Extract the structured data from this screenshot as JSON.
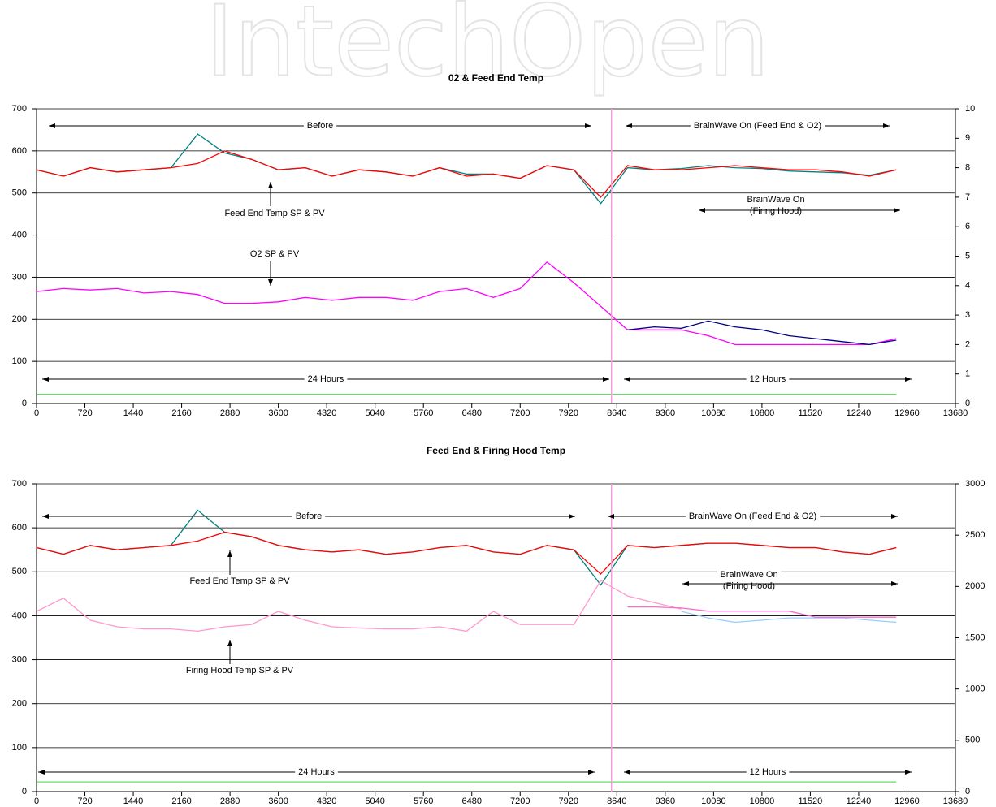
{
  "watermark": "IntechOpen",
  "chart_data": [
    {
      "type": "line",
      "title": "02 & Feed End Temp",
      "x": [
        0,
        400,
        800,
        1200,
        1600,
        2000,
        2400,
        2800,
        3200,
        3600,
        4000,
        4400,
        4800,
        5200,
        5600,
        6000,
        6400,
        6800,
        7200,
        7600,
        8000,
        8400,
        8800,
        9200,
        9600,
        10000,
        10400,
        10800,
        11200,
        11600,
        12000,
        12400,
        12800
      ],
      "xlim": [
        0,
        13680
      ],
      "xticks": [
        0,
        720,
        1440,
        2160,
        2880,
        3600,
        4320,
        5040,
        5760,
        6480,
        7200,
        7920,
        8640,
        9360,
        10080,
        10800,
        11520,
        12240,
        12960,
        13680
      ],
      "ylim": [
        0,
        700
      ],
      "yticks": [
        0,
        100,
        200,
        300,
        400,
        500,
        600,
        700
      ],
      "y2lim": [
        0,
        10
      ],
      "y2ticks": [
        0,
        1,
        2,
        3,
        4,
        5,
        6,
        7,
        8,
        9,
        10
      ],
      "grid": true,
      "vline": 8560,
      "vline_color": "#ff99dd",
      "series": [
        {
          "color": "#008080",
          "values": [
            555,
            540,
            560,
            550,
            555,
            560,
            640,
            595,
            580,
            555,
            560,
            540,
            555,
            550,
            540,
            560,
            545,
            545,
            535,
            565,
            555,
            475,
            560,
            555,
            558,
            565,
            560,
            558,
            552,
            550,
            548,
            542,
            555
          ]
        },
        {
          "color": "#ff0000",
          "values": [
            555,
            540,
            560,
            550,
            555,
            560,
            570,
            600,
            580,
            555,
            560,
            540,
            555,
            550,
            540,
            560,
            540,
            545,
            535,
            565,
            555,
            490,
            565,
            555,
            555,
            560,
            565,
            560,
            555,
            555,
            550,
            540,
            555
          ]
        },
        {
          "color": "#ff00ff",
          "axis": "y2",
          "values": [
            3.8,
            3.9,
            3.85,
            3.9,
            3.75,
            3.8,
            3.7,
            3.4,
            3.4,
            3.45,
            3.6,
            3.5,
            3.6,
            3.6,
            3.5,
            3.8,
            3.9,
            3.6,
            3.9,
            4.8,
            4.1,
            3.3,
            2.5,
            2.5,
            2.5,
            2.3,
            2.0,
            2.0,
            2.0,
            2.0,
            2.0,
            2.0,
            2.2
          ]
        },
        {
          "color": "#000080",
          "axis": "y2",
          "values": [
            null,
            null,
            null,
            null,
            null,
            null,
            null,
            null,
            null,
            null,
            null,
            null,
            null,
            null,
            null,
            null,
            null,
            null,
            null,
            null,
            null,
            null,
            2.5,
            2.6,
            2.55,
            2.8,
            2.6,
            2.5,
            2.3,
            2.2,
            2.1,
            2.0,
            2.15
          ]
        },
        {
          "color": "#66dd66",
          "x": [
            0,
            12800
          ],
          "values": [
            22,
            22
          ]
        }
      ],
      "annotations": [
        "Before",
        "BrainWave On (Feed End & O2)",
        "Feed End Temp SP & PV",
        "BrainWave On",
        "(Firing Hood)",
        "O2 SP & PV",
        "24 Hours",
        "12 Hours"
      ]
    },
    {
      "type": "line",
      "title": "Feed End & Firing Hood Temp",
      "x": [
        0,
        400,
        800,
        1200,
        1600,
        2000,
        2400,
        2800,
        3200,
        3600,
        4000,
        4400,
        4800,
        5200,
        5600,
        6000,
        6400,
        6800,
        7200,
        7600,
        8000,
        8400,
        8800,
        9200,
        9600,
        10000,
        10400,
        10800,
        11200,
        11600,
        12000,
        12400,
        12800
      ],
      "xlim": [
        0,
        13680
      ],
      "xticks": [
        0,
        720,
        1440,
        2160,
        2880,
        3600,
        4320,
        5040,
        5760,
        6480,
        7200,
        7920,
        8640,
        9360,
        10080,
        10800,
        11520,
        12240,
        12960,
        13680
      ],
      "ylim": [
        0,
        700
      ],
      "yticks": [
        0,
        100,
        200,
        300,
        400,
        500,
        600,
        700
      ],
      "y2lim": [
        0,
        3000
      ],
      "y2ticks": [
        0,
        500,
        1000,
        1500,
        2000,
        2500,
        3000
      ],
      "grid": true,
      "vline": 8560,
      "vline_color": "#ff99dd",
      "series": [
        {
          "color": "#008080",
          "values": [
            555,
            540,
            560,
            550,
            555,
            560,
            640,
            590,
            580,
            560,
            550,
            545,
            550,
            540,
            545,
            555,
            560,
            545,
            540,
            560,
            550,
            470,
            560,
            555,
            560,
            565,
            565,
            560,
            555,
            555,
            545,
            540,
            555
          ]
        },
        {
          "color": "#ff0000",
          "values": [
            555,
            540,
            560,
            550,
            555,
            560,
            570,
            590,
            580,
            560,
            550,
            545,
            550,
            540,
            545,
            555,
            560,
            545,
            540,
            560,
            550,
            495,
            560,
            555,
            560,
            565,
            565,
            560,
            555,
            555,
            545,
            540,
            555
          ]
        },
        {
          "color": "#ff99cc",
          "axis": "y2",
          "values": [
            1757,
            1886,
            1671,
            1607,
            1586,
            1586,
            1564,
            1607,
            1629,
            1757,
            1671,
            1607,
            1595,
            1586,
            1586,
            1607,
            1564,
            1757,
            1629,
            1629,
            1629,
            2057,
            1907,
            1843,
            1779,
            null,
            null,
            null,
            null,
            null,
            null,
            null,
            null
          ]
        },
        {
          "color": "#99ccff",
          "axis": "y2",
          "values": [
            null,
            null,
            null,
            null,
            null,
            null,
            null,
            null,
            null,
            null,
            null,
            null,
            null,
            null,
            null,
            null,
            null,
            null,
            null,
            null,
            null,
            null,
            null,
            null,
            1757,
            1693,
            1650,
            1671,
            1693,
            1693,
            1693,
            1671,
            1650
          ]
        },
        {
          "color": "#ff66cc",
          "axis": "y2",
          "values": [
            null,
            null,
            null,
            null,
            null,
            null,
            null,
            null,
            null,
            null,
            null,
            null,
            null,
            null,
            null,
            null,
            null,
            null,
            null,
            null,
            null,
            null,
            1800,
            1800,
            1790,
            1760,
            1760,
            1760,
            1760,
            1700,
            1700,
            1700,
            1700
          ]
        },
        {
          "color": "#66dd66",
          "x": [
            0,
            12800
          ],
          "values": [
            22,
            22
          ]
        }
      ],
      "annotations": [
        "Before",
        "BrainWave On (Feed End & O2)",
        "Feed End Temp SP & PV",
        "BrainWave On",
        "(Firing Hood)",
        "Firing Hood Temp SP & PV",
        "24 Hours",
        "12 Hours"
      ]
    }
  ]
}
